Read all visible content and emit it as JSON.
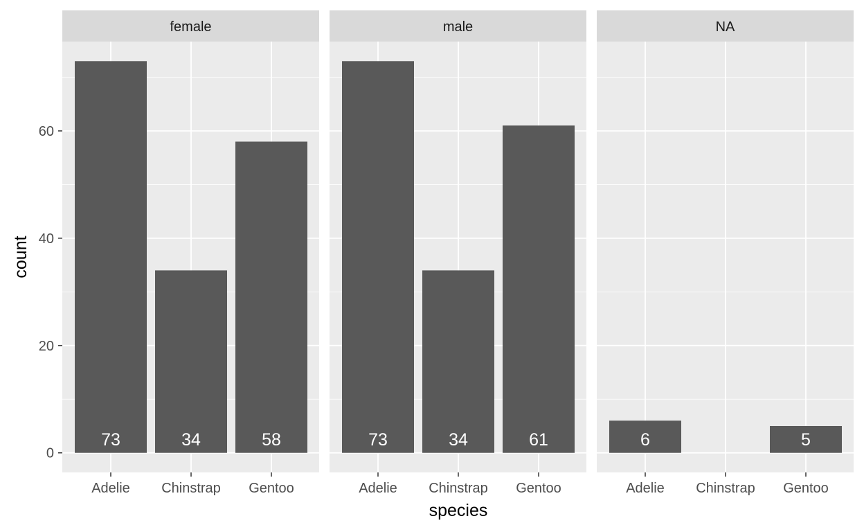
{
  "chart_data": {
    "type": "bar",
    "facet_by": "sex",
    "facets": [
      {
        "label": "female",
        "categories": [
          "Adelie",
          "Chinstrap",
          "Gentoo"
        ],
        "values": [
          73,
          34,
          58
        ]
      },
      {
        "label": "male",
        "categories": [
          "Adelie",
          "Chinstrap",
          "Gentoo"
        ],
        "values": [
          73,
          34,
          61
        ]
      },
      {
        "label": "NA",
        "categories": [
          "Adelie",
          "Chinstrap",
          "Gentoo"
        ],
        "values": [
          6,
          null,
          5
        ]
      }
    ],
    "xlabel": "species",
    "ylabel": "count",
    "yticks": [
      0,
      20,
      40,
      60
    ],
    "ylim": [
      -3.65,
      76.65
    ],
    "grid": true,
    "colors": {
      "bar": "#595959",
      "panel_bg": "#ebebeb",
      "strip_bg": "#d9d9d9",
      "grid": "#ffffff",
      "label": "#ffffff"
    }
  }
}
